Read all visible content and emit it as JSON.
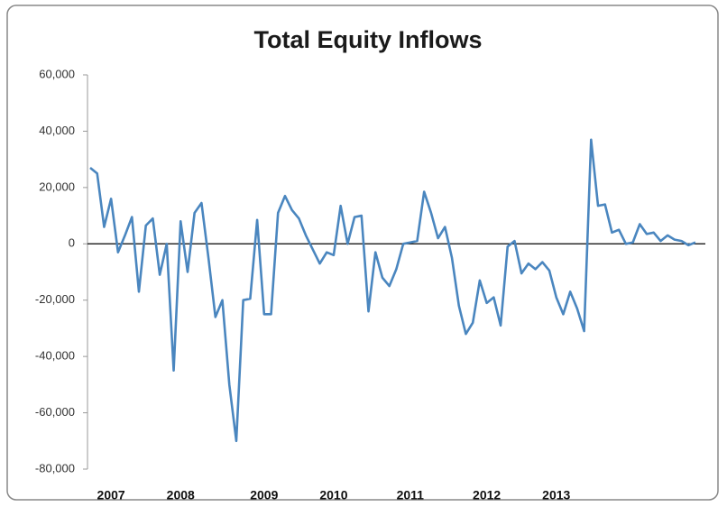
{
  "chart_data": {
    "type": "line",
    "title": "Total Equity Inflows",
    "categories": [
      null,
      null,
      null,
      "2007",
      null,
      null,
      null,
      null,
      null,
      null,
      null,
      null,
      null,
      "2008",
      null,
      null,
      null,
      null,
      null,
      null,
      null,
      null,
      null,
      null,
      null,
      "2009",
      null,
      null,
      null,
      null,
      null,
      null,
      null,
      null,
      null,
      "2010",
      null,
      null,
      null,
      null,
      null,
      null,
      null,
      null,
      null,
      null,
      "2011",
      null,
      null,
      null,
      null,
      null,
      null,
      null,
      null,
      null,
      null,
      "2012",
      null,
      null,
      null,
      null,
      null,
      null,
      null,
      null,
      null,
      "2013",
      null,
      null,
      null,
      null,
      null,
      null,
      null,
      null,
      null,
      null,
      null,
      null,
      null,
      null,
      null,
      null,
      null,
      null,
      null,
      null
    ],
    "series": [
      {
        "name": "Total Equity Inflows",
        "color": "#4a86bf",
        "values": [
          27000,
          25000,
          6000,
          16000,
          -3000,
          3000,
          9500,
          -17000,
          6500,
          9000,
          -11000,
          0,
          -45000,
          8000,
          -10000,
          11000,
          14500,
          -5000,
          -26000,
          -20000,
          -50000,
          -70000,
          -20000,
          -19500,
          8500,
          -25000,
          -25000,
          11000,
          17000,
          12000,
          9000,
          3000,
          -2000,
          -7000,
          -3000,
          -4000,
          13500,
          0,
          9500,
          10000,
          -24000,
          -3000,
          -12000,
          -15000,
          -9000,
          0,
          500,
          1000,
          18500,
          11000,
          2000,
          6000,
          -5000,
          -22000,
          -32000,
          -28000,
          -13000,
          -21000,
          -19000,
          -29000,
          -1000,
          1000,
          -10500,
          -7000,
          -9000,
          -6500,
          -9500,
          -19000,
          -25000,
          -17000,
          -23000,
          -31000,
          37000,
          13500,
          14000,
          4000,
          5000,
          0,
          500,
          7000,
          3500,
          4000,
          1000,
          3000,
          1500,
          1000,
          -500,
          500
        ]
      }
    ],
    "ylim": [
      -80000,
      60000
    ],
    "yticks": [
      {
        "value": -80000,
        "label": "-80,000"
      },
      {
        "value": -60000,
        "label": "-60,000"
      },
      {
        "value": -40000,
        "label": "-40,000"
      },
      {
        "value": -20000,
        "label": "-20,000"
      },
      0,
      {
        "value": 20000,
        "label": "20,000"
      },
      {
        "value": 40000,
        "label": "40,000"
      },
      {
        "value": 60000,
        "label": "60,000"
      }
    ],
    "grid": false
  }
}
